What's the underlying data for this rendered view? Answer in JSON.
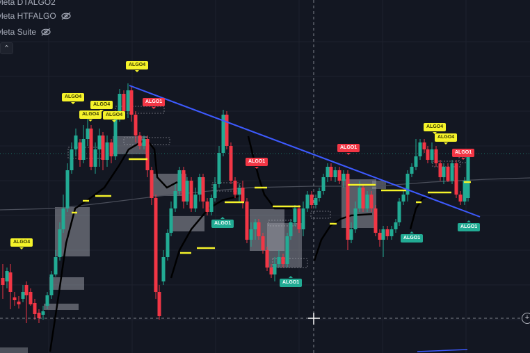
{
  "legend": [
    {
      "label": "yleta DTALGO2"
    },
    {
      "label": "yleta HTFALGO",
      "icon": "eye-off-icon"
    },
    {
      "label": "yleta Suite",
      "icon": "eye-off-icon"
    }
  ],
  "collapse_icon": "chevron-up-icon",
  "add_button": "+",
  "colors": {
    "background": "#131722",
    "bull": "#22ab94",
    "bear": "#f23645",
    "trendline": "#3d5afe",
    "signal_line": "#f5f32a",
    "zone": "#9598a1"
  },
  "signals": [
    {
      "label": "ALGO4",
      "color": "yellow"
    },
    {
      "label": "ALGO4",
      "color": "yellow"
    },
    {
      "label": "ALGO4",
      "color": "yellow"
    },
    {
      "label": "ALGO4",
      "color": "yellow"
    },
    {
      "label": "ALGO4",
      "color": "yellow"
    },
    {
      "label": "ALGO4",
      "color": "yellow"
    },
    {
      "label": "ALGO4",
      "color": "yellow"
    },
    {
      "label": "ALGO4",
      "color": "yellow"
    },
    {
      "label": "ALGO1",
      "color": "red"
    },
    {
      "label": "ALGO1",
      "color": "red"
    },
    {
      "label": "ALGO1",
      "color": "red"
    },
    {
      "label": "ALGO1",
      "color": "red"
    },
    {
      "label": "ALGO1",
      "color": "green"
    },
    {
      "label": "ALGO1",
      "color": "green"
    },
    {
      "label": "ALGO1",
      "color": "green"
    },
    {
      "label": "ALGO1",
      "color": "green"
    }
  ]
}
